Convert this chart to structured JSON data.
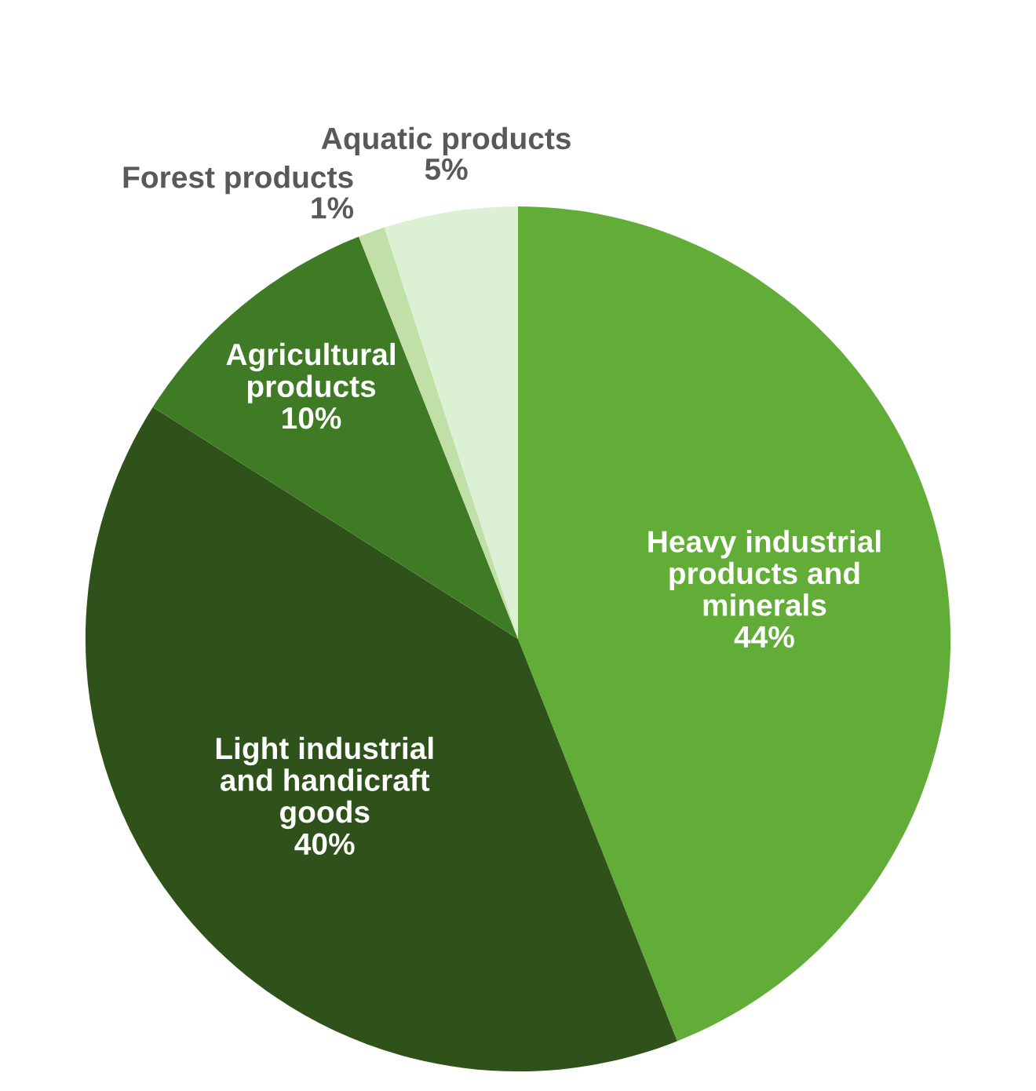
{
  "chart_data": {
    "type": "pie",
    "categories": [
      "Heavy industrial\nproducts and\nminerals",
      "Light industrial\nand handicraft\ngoods",
      "Agricultural\nproducts",
      "Forest products",
      "Aquatic products"
    ],
    "values": [
      44,
      40,
      10,
      1,
      5
    ],
    "value_labels": [
      "44%",
      "40%",
      "10%",
      "1%",
      "5%"
    ],
    "colors": [
      "#62ad38",
      "#2e5219",
      "#3f7a25",
      "#c0e0a8",
      "#dcf0d3"
    ],
    "legend": false
  }
}
